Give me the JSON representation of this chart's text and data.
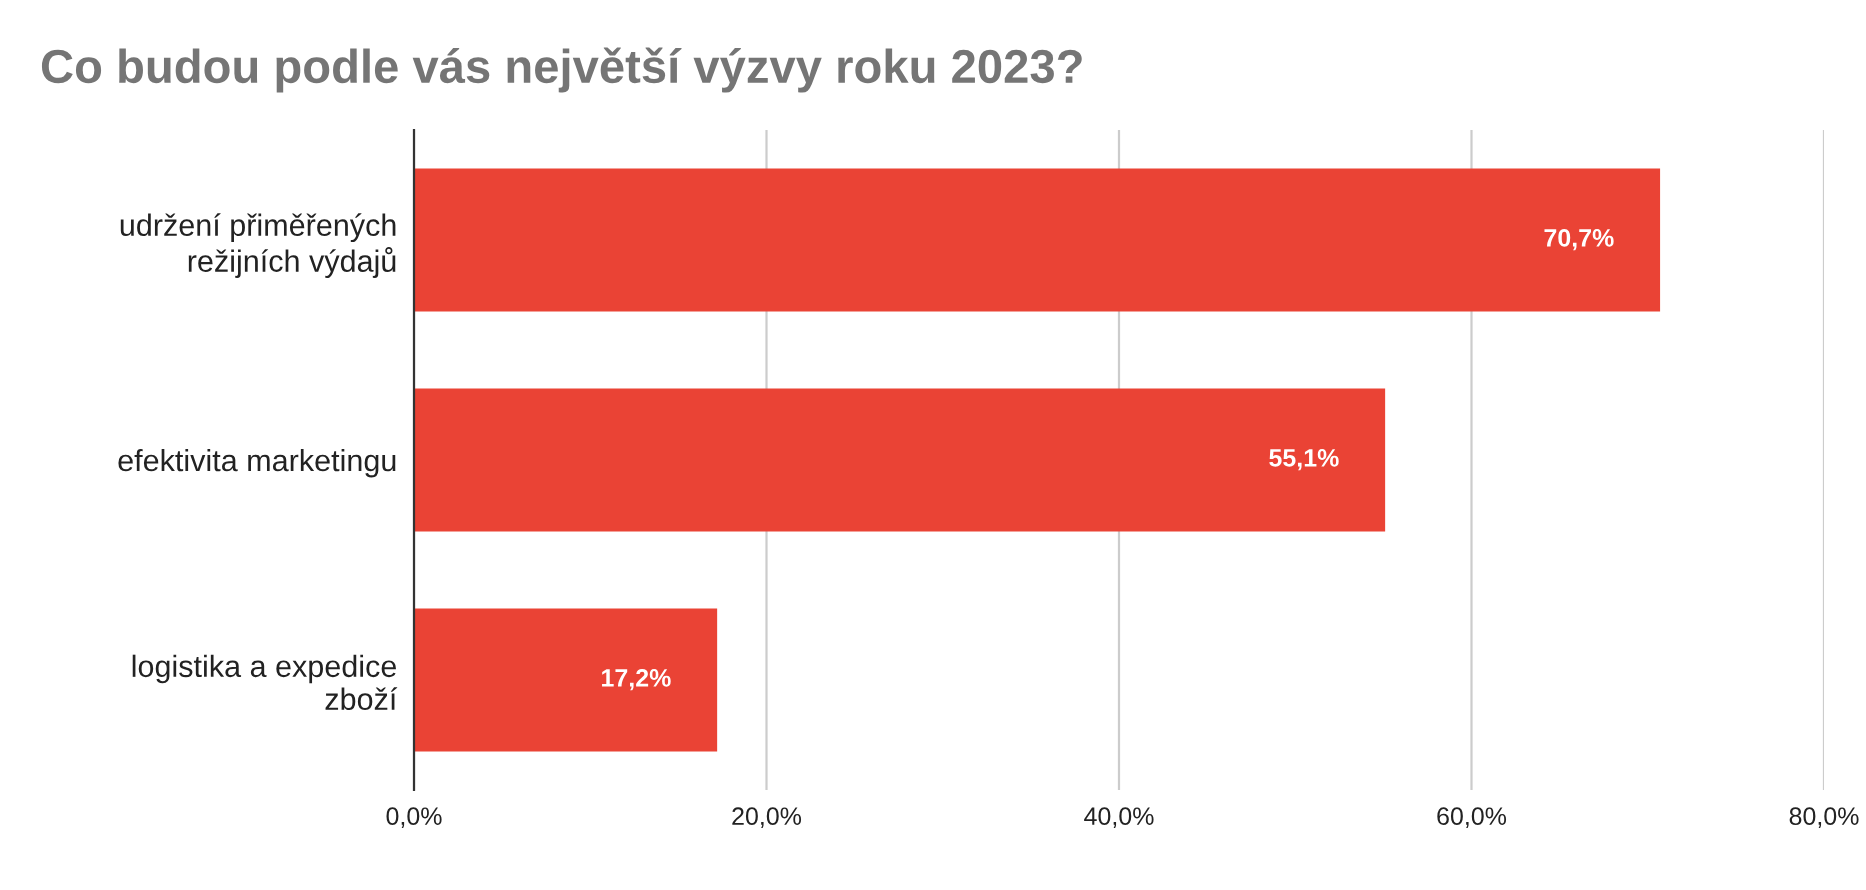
{
  "chart_data": {
    "type": "bar",
    "orientation": "horizontal",
    "title": "Co budou podle vás největší výzvy roku 2023?",
    "categories": [
      "udržení přiměřených\nrežijních výdajů",
      "efektivita marketingu",
      "logistika a expedice\nzboží"
    ],
    "values": [
      70.7,
      55.1,
      17.2
    ],
    "value_labels": [
      "70,7%",
      "55,1%",
      "17,2%"
    ],
    "color": "#ea4335",
    "xlim": [
      0,
      80
    ],
    "xticks": [
      {
        "value": 0,
        "label": "0,0%"
      },
      {
        "value": 20,
        "label": "20,0%"
      },
      {
        "value": 40,
        "label": "40,0%"
      },
      {
        "value": 60,
        "label": "60,0%"
      },
      {
        "value": 80,
        "label": "80,0%"
      }
    ],
    "grid": "x",
    "legend": false
  }
}
